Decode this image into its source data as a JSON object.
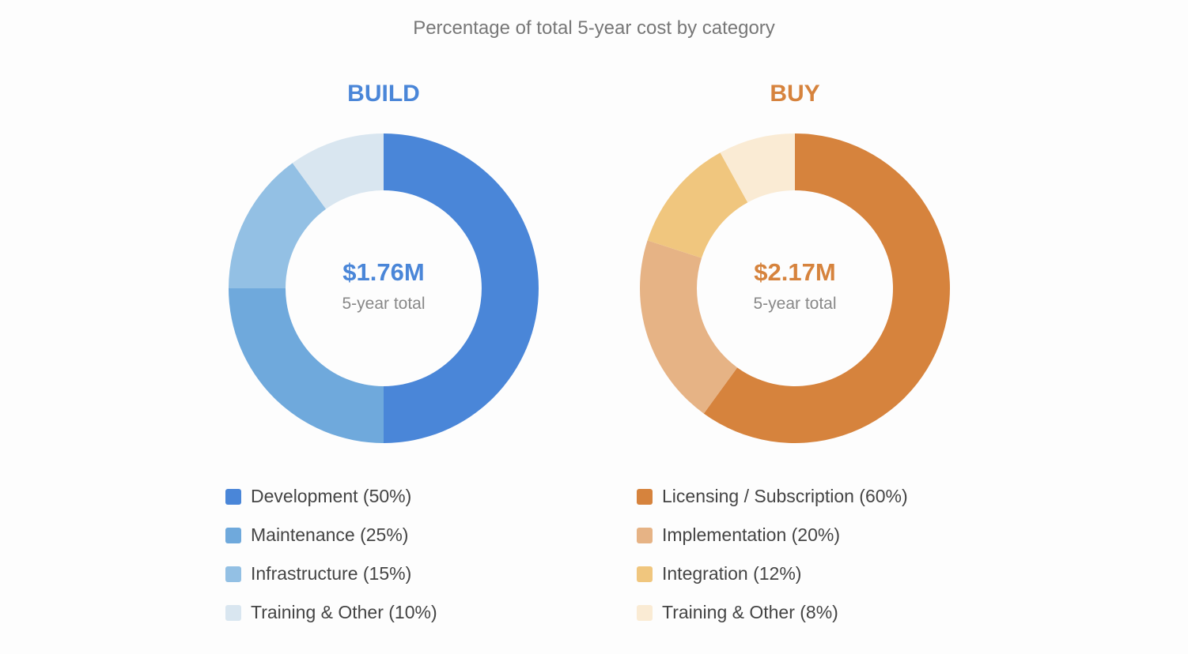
{
  "chart_data": [
    {
      "type": "pie",
      "subtype": "donut",
      "title": "BUILD",
      "center_value": "$1.76M",
      "center_label": "5-year total",
      "categories": [
        "Development",
        "Maintenance",
        "Infrastructure",
        "Training & Other"
      ],
      "values": [
        50,
        25,
        15,
        10
      ],
      "legend": [
        "Development (50%)",
        "Maintenance (25%)",
        "Infrastructure (15%)",
        "Training & Other (10%)"
      ],
      "colors": [
        "#4a86d8",
        "#6fa9dc",
        "#93c0e4",
        "#d9e6f0"
      ],
      "accent": "#4a86d8",
      "legend_position": "bottom"
    },
    {
      "type": "pie",
      "subtype": "donut",
      "title": "BUY",
      "center_value": "$2.17M",
      "center_label": "5-year total",
      "categories": [
        "Licensing / Subscription",
        "Implementation",
        "Integration",
        "Training & Other"
      ],
      "values": [
        60,
        20,
        12,
        8
      ],
      "legend": [
        "Licensing / Subscription (60%)",
        "Implementation (20%)",
        "Integration (12%)",
        "Training & Other (8%)"
      ],
      "colors": [
        "#d6833d",
        "#e6b385",
        "#f0c67e",
        "#faebd4"
      ],
      "accent": "#d6833d",
      "legend_position": "bottom"
    }
  ],
  "title": "Percentage of total 5-year cost by category"
}
